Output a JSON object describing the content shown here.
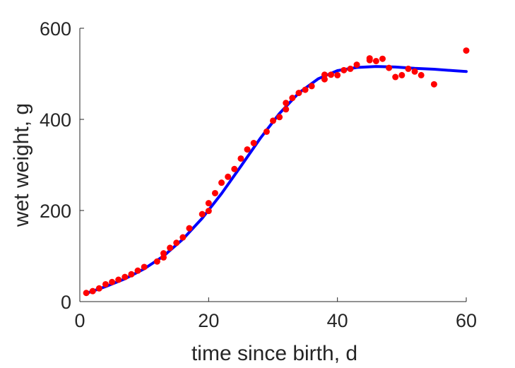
{
  "chart_data": {
    "type": "scatter",
    "xlabel": "time since birth, d",
    "ylabel": "wet weight, g",
    "xlim": [
      0,
      60
    ],
    "ylim": [
      0,
      600
    ],
    "xticks": [
      "0",
      "20",
      "40",
      "60"
    ],
    "yticks": [
      "0",
      "200",
      "400",
      "600"
    ],
    "grid": false,
    "legend": "none",
    "series": [
      {
        "kind": "scatter",
        "color": "#ff0000",
        "points": [
          [
            1,
            19
          ],
          [
            2,
            23
          ],
          [
            3,
            29
          ],
          [
            4,
            38
          ],
          [
            5,
            43
          ],
          [
            6,
            48
          ],
          [
            7,
            54
          ],
          [
            8,
            60
          ],
          [
            9,
            68
          ],
          [
            10,
            76
          ],
          [
            12,
            88
          ],
          [
            13,
            97
          ],
          [
            13,
            106
          ],
          [
            14,
            118
          ],
          [
            15,
            129
          ],
          [
            16,
            141
          ],
          [
            17,
            161
          ],
          [
            19,
            192
          ],
          [
            20,
            199
          ],
          [
            20,
            216
          ],
          [
            21,
            238
          ],
          [
            22,
            261
          ],
          [
            23,
            274
          ],
          [
            24,
            291
          ],
          [
            25,
            314
          ],
          [
            26,
            334
          ],
          [
            27,
            348
          ],
          [
            29,
            373
          ],
          [
            30,
            397
          ],
          [
            31,
            405
          ],
          [
            32,
            422
          ],
          [
            32,
            436
          ],
          [
            33,
            447
          ],
          [
            34,
            458
          ],
          [
            35,
            465
          ],
          [
            36,
            473
          ],
          [
            38,
            488
          ],
          [
            38,
            498
          ],
          [
            39,
            498
          ],
          [
            40,
            497
          ],
          [
            41,
            508
          ],
          [
            42,
            511
          ],
          [
            43,
            520
          ],
          [
            45,
            534
          ],
          [
            45,
            530
          ],
          [
            46,
            528
          ],
          [
            47,
            533
          ],
          [
            48,
            513
          ],
          [
            49,
            493
          ],
          [
            50,
            497
          ],
          [
            51,
            511
          ],
          [
            52,
            505
          ],
          [
            53,
            497
          ],
          [
            55,
            477
          ],
          [
            60,
            551
          ]
        ]
      },
      {
        "kind": "line",
        "color": "#0000ff",
        "points": [
          [
            1,
            18
          ],
          [
            4,
            33
          ],
          [
            7,
            50
          ],
          [
            10,
            72
          ],
          [
            13,
            100
          ],
          [
            16,
            137
          ],
          [
            19,
            183
          ],
          [
            22,
            237
          ],
          [
            25,
            297
          ],
          [
            28,
            358
          ],
          [
            31,
            413
          ],
          [
            34,
            458
          ],
          [
            37,
            489
          ],
          [
            40,
            507
          ],
          [
            43,
            514
          ],
          [
            46,
            516
          ],
          [
            49,
            515
          ],
          [
            52,
            512
          ],
          [
            55,
            510
          ],
          [
            58,
            507
          ],
          [
            60,
            505
          ]
        ]
      }
    ]
  }
}
